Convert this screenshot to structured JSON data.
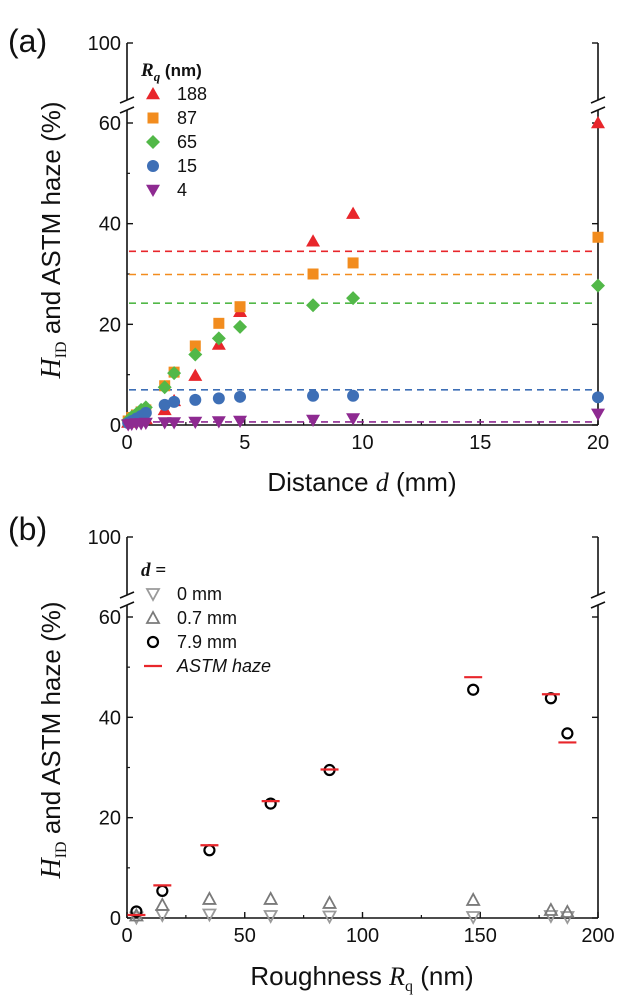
{
  "chart_data": [
    {
      "type": "scatter",
      "panel_label": "(a)",
      "ylabel_var": "H",
      "ylabel_sub": "ID",
      "ylabel_rest": " and ASTM haze (%)",
      "xlabel_text": "Distance ",
      "xlabel_var": "d",
      "xlabel_unit": " (mm)",
      "xlim": [
        0,
        20
      ],
      "ylim": [
        0,
        60
      ],
      "y_break_top": 100,
      "x_ticks": [
        "0",
        "5",
        "10",
        "15",
        "20"
      ],
      "y_ticks": [
        "0",
        "20",
        "40",
        "60"
      ],
      "y_top_tick": "100",
      "legend_title_var": "R",
      "legend_title_sub": "q",
      "legend_title_unit": " (nm)",
      "series": [
        {
          "name": "188",
          "color": "#e8262b",
          "marker": "triangle-up",
          "x": [
            0.05,
            0.2,
            0.4,
            0.6,
            0.8,
            1.6,
            2.0,
            2.9,
            3.9,
            4.8,
            7.9,
            9.6,
            20.0
          ],
          "y": [
            0.5,
            0.7,
            0.9,
            1.0,
            1.2,
            3.0,
            4.8,
            9.8,
            16.0,
            22.5,
            36.5,
            42.0,
            60.0
          ],
          "astm": 34.5
        },
        {
          "name": "87",
          "color": "#f28c1e",
          "marker": "square",
          "x": [
            0.05,
            0.2,
            0.4,
            0.6,
            0.8,
            1.6,
            2.0,
            2.9,
            3.9,
            4.8,
            7.9,
            9.6,
            20.0
          ],
          "y": [
            0.8,
            1.5,
            2.0,
            2.6,
            3.0,
            7.8,
            10.5,
            15.7,
            20.2,
            23.5,
            30.0,
            32.2,
            37.3
          ],
          "astm": 29.9
        },
        {
          "name": "65",
          "color": "#52b848",
          "marker": "diamond",
          "x": [
            0.05,
            0.2,
            0.4,
            0.6,
            0.8,
            1.6,
            2.0,
            2.9,
            3.9,
            4.8,
            7.9,
            9.6,
            20.0
          ],
          "y": [
            0.9,
            1.6,
            2.2,
            3.0,
            3.5,
            7.5,
            10.3,
            14.0,
            17.2,
            19.5,
            23.8,
            25.2,
            27.7
          ],
          "astm": 24.2
        },
        {
          "name": "15",
          "color": "#3e6fb6",
          "marker": "circle",
          "x": [
            0.05,
            0.2,
            0.4,
            0.6,
            0.8,
            1.6,
            2.0,
            2.9,
            3.9,
            4.8,
            7.9,
            9.6,
            20.0
          ],
          "y": [
            0.4,
            0.8,
            1.3,
            1.8,
            2.4,
            4.0,
            4.6,
            5.0,
            5.3,
            5.6,
            5.8,
            5.8,
            5.5
          ],
          "astm": 7.0
        },
        {
          "name": "4",
          "color": "#8e2a91",
          "marker": "triangle-down",
          "x": [
            0.05,
            0.2,
            0.4,
            0.6,
            0.8,
            1.6,
            2.0,
            2.9,
            3.9,
            4.8,
            7.9,
            9.6,
            20.0
          ],
          "y": [
            0.1,
            0.2,
            0.3,
            0.3,
            0.4,
            0.5,
            0.5,
            0.6,
            0.7,
            0.8,
            1.0,
            1.3,
            2.2
          ],
          "astm": 0.6
        }
      ]
    },
    {
      "type": "scatter",
      "panel_label": "(b)",
      "ylabel_var": "H",
      "ylabel_sub": "ID",
      "ylabel_rest": " and ASTM haze (%)",
      "xlabel_text": "Roughness ",
      "xlabel_var": "R",
      "xlabel_sub": "q",
      "xlabel_unit": " (nm)",
      "xlim": [
        0,
        200
      ],
      "ylim": [
        0,
        60
      ],
      "y_break_top": 100,
      "x_ticks": [
        "0",
        "50",
        "100",
        "150",
        "200"
      ],
      "y_ticks": [
        "0",
        "20",
        "40",
        "60"
      ],
      "y_top_tick": "100",
      "legend_title": "d =",
      "series": [
        {
          "name": "0 mm",
          "color": "#9a9a9a",
          "marker": "triangle-down-open",
          "x": [
            4,
            15,
            35,
            61,
            86,
            147,
            180,
            187
          ],
          "y": [
            0.1,
            0.6,
            0.7,
            0.4,
            0.3,
            0.2,
            0.4,
            0.2
          ]
        },
        {
          "name": "0.7 mm",
          "color": "#7a7a7a",
          "marker": "triangle-up-open",
          "x": [
            4,
            15,
            35,
            61,
            86,
            147,
            180,
            187
          ],
          "y": [
            0.5,
            2.6,
            3.8,
            3.8,
            3.0,
            3.6,
            1.6,
            1.2
          ]
        },
        {
          "name": "7.9 mm",
          "color": "#000000",
          "marker": "circle-open",
          "x": [
            4,
            15,
            35,
            61,
            86,
            147,
            180,
            187
          ],
          "y": [
            1.3,
            5.4,
            13.5,
            22.8,
            29.5,
            45.5,
            43.8,
            36.8
          ]
        },
        {
          "name": "ASTM haze",
          "color": "#e8262b",
          "marker": "dash",
          "x": [
            4,
            15,
            35,
            61,
            86,
            147,
            180,
            187
          ],
          "y": [
            0.6,
            6.5,
            14.5,
            23.3,
            29.6,
            48.0,
            44.6,
            35.0
          ]
        }
      ]
    }
  ]
}
